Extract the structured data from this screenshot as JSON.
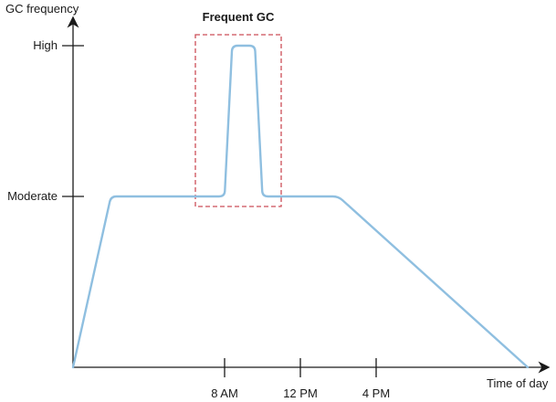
{
  "chart_data": {
    "type": "line",
    "ylabel": "GC frequency",
    "xlabel": "Time of day",
    "y_ticks": [
      "Moderate",
      "High"
    ],
    "x_ticks": [
      "8 AM",
      "12 PM",
      "4 PM"
    ],
    "series": [
      {
        "color": "#8fbfe0",
        "points": [
          {
            "x": 0,
            "y": 0
          },
          {
            "x": 1,
            "y": 1
          },
          {
            "x": 4,
            "y": 1
          },
          {
            "x": 4.2,
            "y": 2
          },
          {
            "x": 4.8,
            "y": 2
          },
          {
            "x": 5,
            "y": 1
          },
          {
            "x": 7,
            "y": 1
          },
          {
            "x": 12,
            "y": 0
          }
        ]
      }
    ],
    "annotations": [
      {
        "label": "Frequent GC",
        "color": "#cc4e58",
        "style": "dashed-box"
      }
    ],
    "grid": false
  },
  "colors": {
    "axis": "#1a1a1a",
    "line": "#8fbfe0",
    "highlight": "#cc4e58"
  }
}
